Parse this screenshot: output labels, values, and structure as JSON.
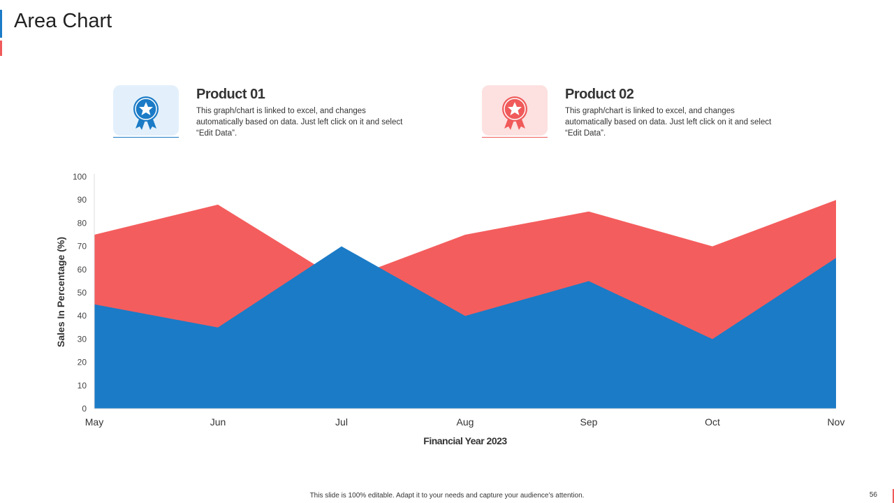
{
  "header": {
    "title": "Area Chart"
  },
  "products": [
    {
      "title": "Product 01",
      "description": "This graph/chart  is linked to excel, and changes automatically  based on data. Just left click on it and select “Edit  Data”.",
      "icon": "award-ribbon-icon",
      "color": "#1b7bc6",
      "bg": "#e3f0fb"
    },
    {
      "title": "Product 02",
      "description": "This graph/chart  is linked to excel, and changes automatically  based on data. Just left click on it and select “Edit  Data”.",
      "icon": "award-ribbon-icon",
      "color": "#f05a5a",
      "bg": "#fde0e0"
    }
  ],
  "chart_data": {
    "type": "area",
    "categories": [
      "May",
      "Jun",
      "Jul",
      "Aug",
      "Sep",
      "Oct",
      "Nov"
    ],
    "series": [
      {
        "color": "#f45d5d",
        "values": [
          75,
          88,
          55,
          75,
          85,
          70,
          90
        ]
      },
      {
        "color": "#1b7bc6",
        "values": [
          45,
          35,
          70,
          40,
          55,
          30,
          65
        ]
      }
    ],
    "xlabel": "Financial Year 2023",
    "ylabel": "Sales In Percentage (%)",
    "ylim": [
      0,
      100
    ],
    "yticks": [
      0,
      10,
      20,
      30,
      40,
      50,
      60,
      70,
      80,
      90,
      100
    ],
    "grid": false
  },
  "footer": {
    "text": "This slide is 100% editable. Adapt it to your needs and capture your audience’s attention.",
    "page": "56"
  }
}
